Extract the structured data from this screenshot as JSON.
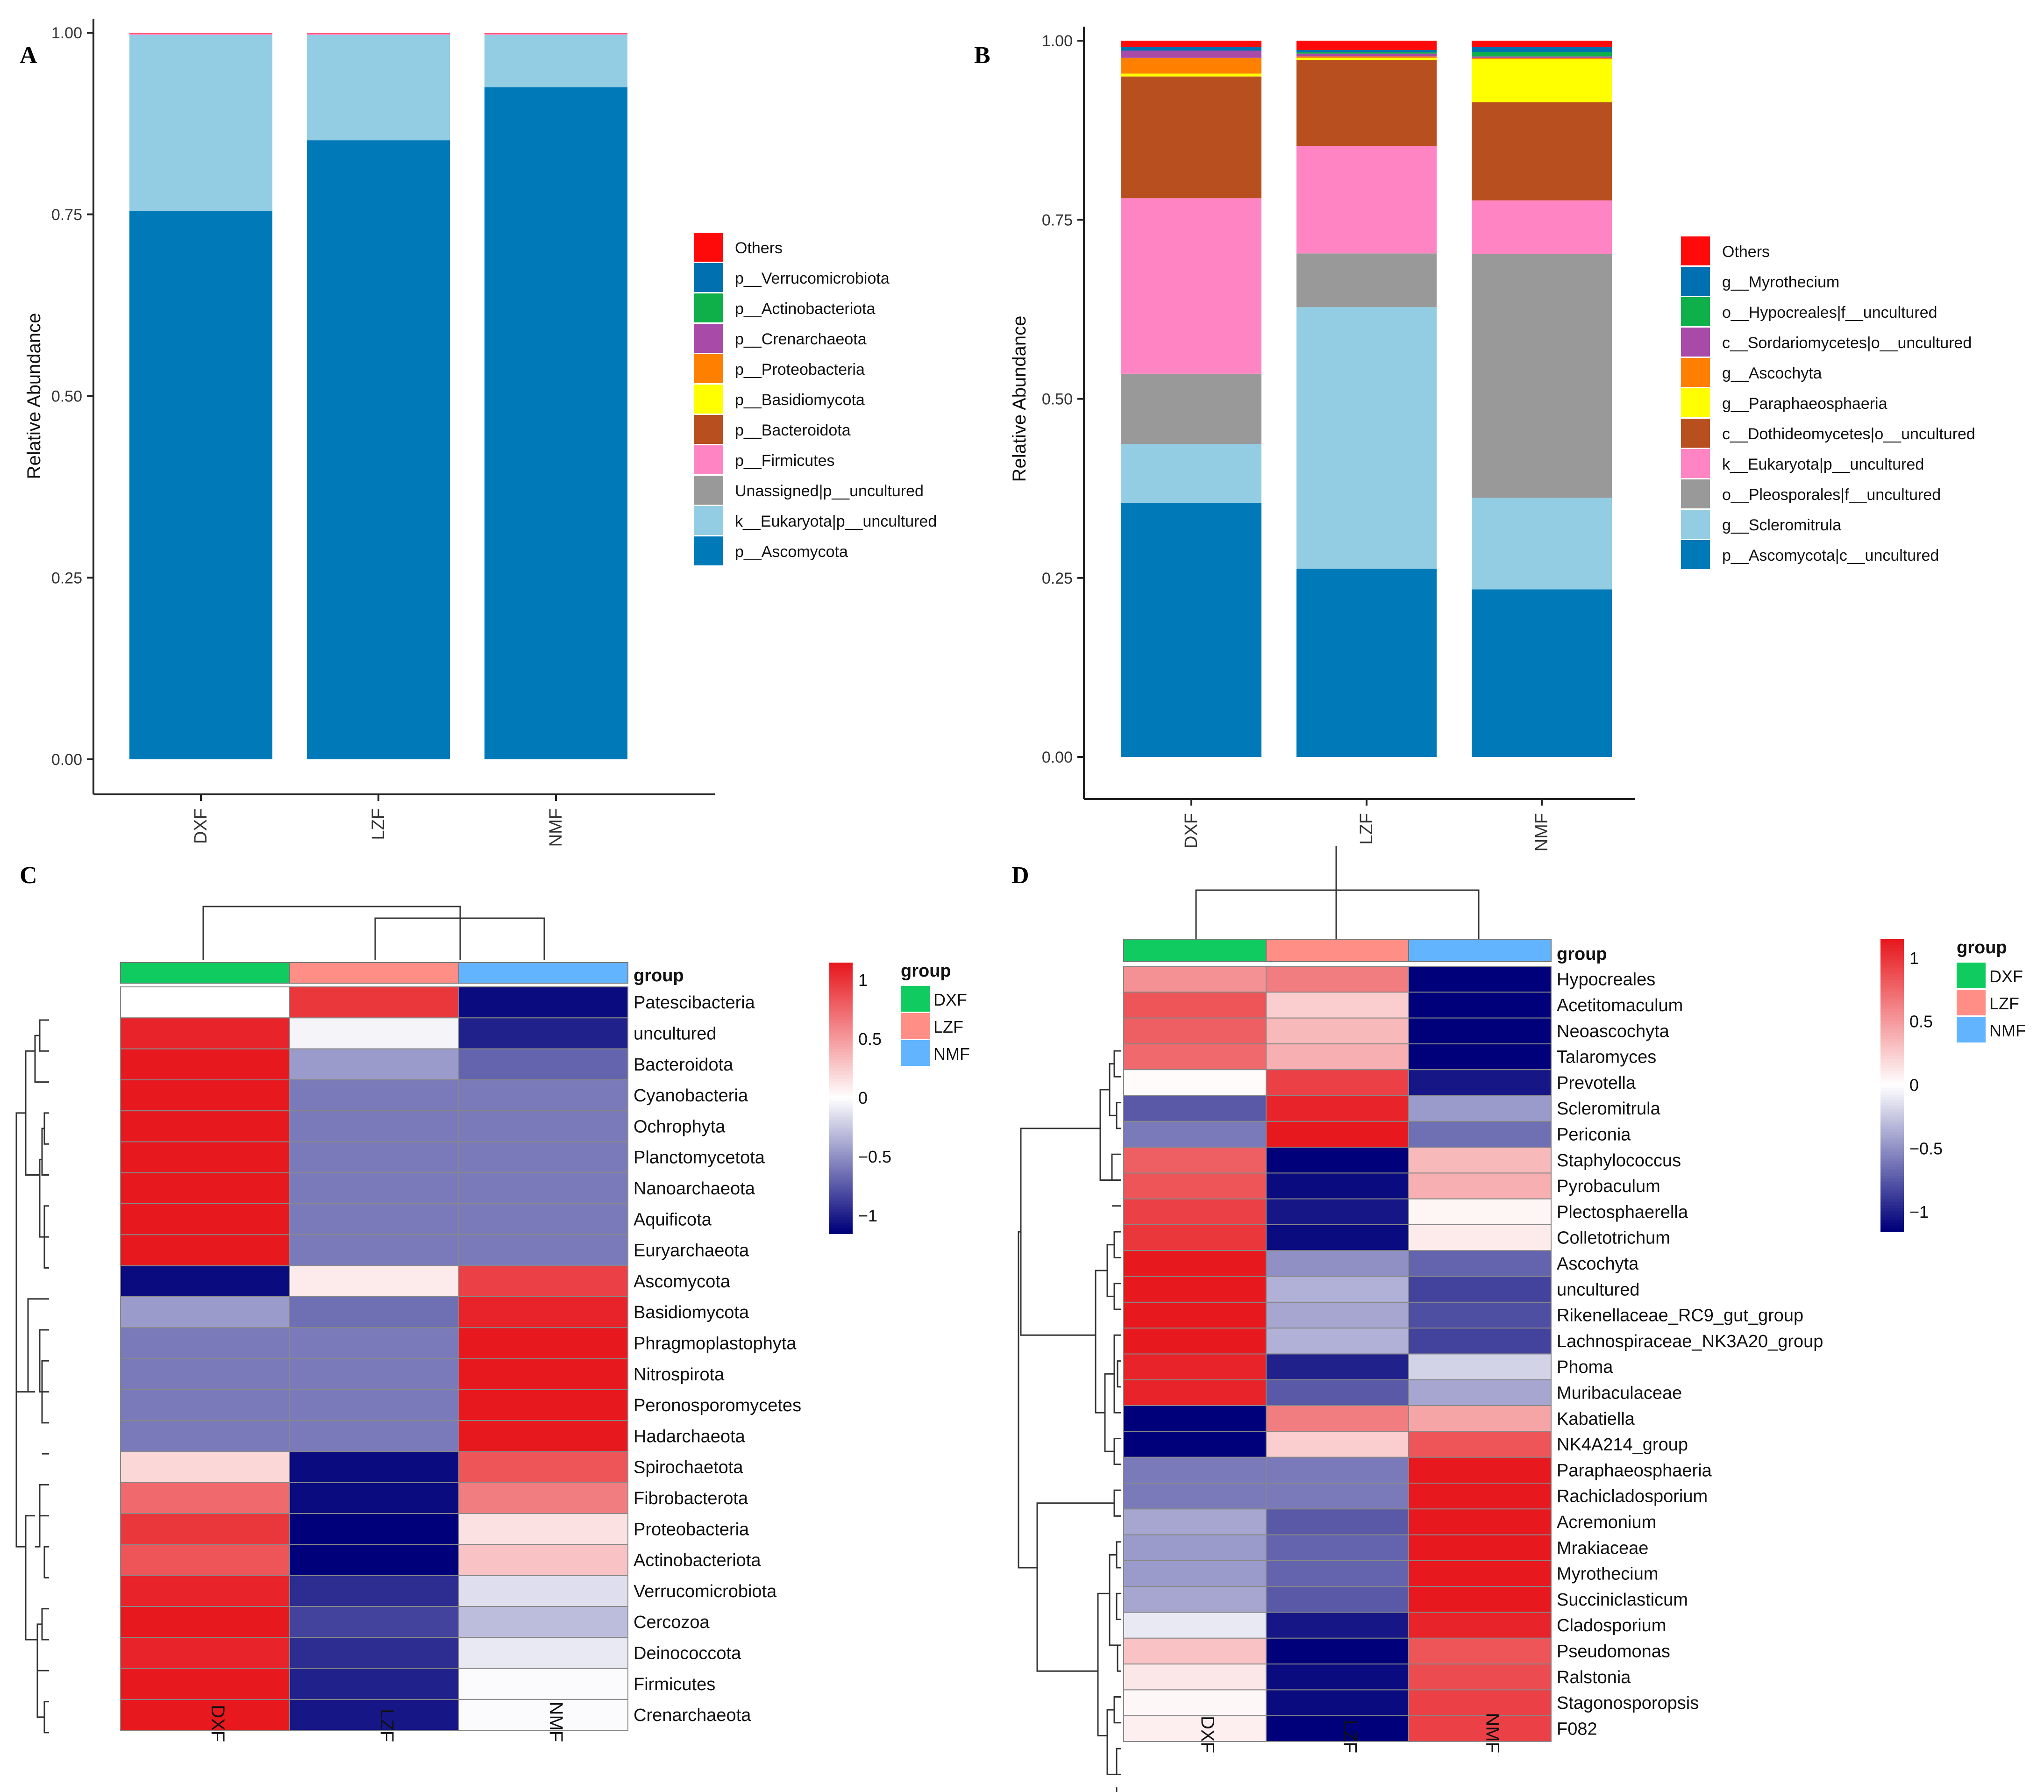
{
  "chart_data": [
    {
      "panel": "A",
      "type": "bar",
      "stacked": true,
      "ylabel": "Relative Abundance",
      "xlabel": "",
      "ylim": [
        0,
        1
      ],
      "yticks": [
        "0.00",
        "0.25",
        "0.50",
        "0.75",
        "1.00"
      ],
      "categories": [
        "DXF",
        "LZF",
        "NMF"
      ],
      "legend": [
        {
          "name": "Others",
          "color": "#ff0a0a"
        },
        {
          "name": "p__Verrucomicrobiota",
          "color": "#0070b0"
        },
        {
          "name": "p__Actinobacteriota",
          "color": "#0fb04a"
        },
        {
          "name": "p__Crenarchaeota",
          "color": "#a84aa8"
        },
        {
          "name": "p__Proteobacteria",
          "color": "#ff8000"
        },
        {
          "name": "p__Basidiomycota",
          "color": "#ffff00"
        },
        {
          "name": "p__Bacteroidota",
          "color": "#b84f1e"
        },
        {
          "name": "p__Firmicutes",
          "color": "#ff84c4"
        },
        {
          "name": "Unassigned|p__uncultured",
          "color": "#999999"
        },
        {
          "name": "k__Eukaryota|p__uncultured",
          "color": "#93cde3"
        },
        {
          "name": "p__Ascomycota",
          "color": "#0079b8"
        }
      ],
      "series": [
        {
          "name": "p__Ascomycota",
          "color": "#0079b8",
          "values": [
            0.755,
            0.852,
            0.925
          ]
        },
        {
          "name": "k__Eukaryota|p__uncultured",
          "color": "#93cde3",
          "values": [
            0.242,
            0.145,
            0.072
          ]
        },
        {
          "name": "Unassigned|p__uncultured",
          "color": "#999999",
          "values": [
            0.0,
            0.0,
            0.0
          ]
        },
        {
          "name": "p__Firmicutes",
          "color": "#ff84c4",
          "values": [
            0.002,
            0.002,
            0.002
          ]
        },
        {
          "name": "Others",
          "color": "#ff0a0a",
          "values": [
            0.001,
            0.001,
            0.001
          ]
        }
      ]
    },
    {
      "panel": "B",
      "type": "bar",
      "stacked": true,
      "ylabel": "Relative Abundance",
      "xlabel": "",
      "ylim": [
        0,
        1
      ],
      "yticks": [
        "0.00",
        "0.25",
        "0.50",
        "0.75",
        "1.00"
      ],
      "categories": [
        "DXF",
        "LZF",
        "NMF"
      ],
      "legend": [
        {
          "name": "Others",
          "color": "#ff0a0a"
        },
        {
          "name": "g__Myrothecium",
          "color": "#0070b0"
        },
        {
          "name": "o__Hypocreales|f__uncultured",
          "color": "#0fb04a"
        },
        {
          "name": "c__Sordariomycetes|o__uncultured",
          "color": "#a84aa8"
        },
        {
          "name": "g__Ascochyta",
          "color": "#ff8000"
        },
        {
          "name": "g__Paraphaeosphaeria",
          "color": "#ffff00"
        },
        {
          "name": "c__Dothideomycetes|o__uncultured",
          "color": "#b84f1e"
        },
        {
          "name": "k__Eukaryota|p__uncultured",
          "color": "#ff84c4"
        },
        {
          "name": "o__Pleosporales|f__uncultured",
          "color": "#999999"
        },
        {
          "name": "g__Scleromitrula",
          "color": "#93cde3"
        },
        {
          "name": "p__Ascomycota|c__uncultured",
          "color": "#0079b8"
        }
      ],
      "series": [
        {
          "name": "p__Ascomycota|c__uncultured",
          "color": "#0079b8",
          "values": [
            0.355,
            0.263,
            0.234
          ]
        },
        {
          "name": "g__Scleromitrula",
          "color": "#93cde3",
          "values": [
            0.082,
            0.365,
            0.128
          ]
        },
        {
          "name": "o__Pleosporales|f__uncultured",
          "color": "#999999",
          "values": [
            0.098,
            0.075,
            0.34
          ]
        },
        {
          "name": "k__Eukaryota|p__uncultured",
          "color": "#ff84c4",
          "values": [
            0.245,
            0.15,
            0.075
          ]
        },
        {
          "name": "c__Dothideomycetes|o__uncultured",
          "color": "#b84f1e",
          "values": [
            0.17,
            0.12,
            0.137
          ]
        },
        {
          "name": "g__Paraphaeosphaeria",
          "color": "#ffff00",
          "values": [
            0.004,
            0.003,
            0.06
          ]
        },
        {
          "name": "g__Ascochyta",
          "color": "#ff8000",
          "values": [
            0.022,
            0.002,
            0.002
          ]
        },
        {
          "name": "c__Sordariomycetes|o__uncultured",
          "color": "#a84aa8",
          "values": [
            0.01,
            0.004,
            0.002
          ]
        },
        {
          "name": "o__Hypocreales|f__uncultured",
          "color": "#0fb04a",
          "values": [
            0.0,
            0.002,
            0.006
          ]
        },
        {
          "name": "g__Myrothecium",
          "color": "#0070b0",
          "values": [
            0.005,
            0.003,
            0.007
          ]
        },
        {
          "name": "Others",
          "color": "#ff0a0a",
          "values": [
            0.009,
            0.013,
            0.009
          ]
        }
      ]
    },
    {
      "panel": "C",
      "type": "heatmap",
      "group_label": "group",
      "columns": [
        "DXF",
        "LZF",
        "NMF"
      ],
      "group_colors": [
        "#10cc60",
        "#ff8e86",
        "#62b4ff"
      ],
      "legend_title": "group",
      "legend_groups": [
        {
          "name": "DXF",
          "color": "#10cc60"
        },
        {
          "name": "LZF",
          "color": "#ff8e86"
        },
        {
          "name": "NMF",
          "color": "#62b4ff"
        }
      ],
      "scale_range": [
        -1.15,
        1.15
      ],
      "scale_ticks": [
        {
          "label": "1",
          "value": 1
        },
        {
          "label": "0.5",
          "value": 0.5
        },
        {
          "label": "0",
          "value": 0
        },
        {
          "label": "−0.5",
          "value": -0.5
        },
        {
          "label": "−1",
          "value": -1
        }
      ],
      "rows": [
        "Patescibacteria",
        "uncultured",
        "Bacteroidota",
        "Cyanobacteria",
        "Ochrophyta",
        "Planctomycetota",
        "Nanoarchaeota",
        "Aquificota",
        "Euryarchaeota",
        "Ascomycota",
        "Basidiomycota",
        "Phragmoplastophyta",
        "Nitrospirota",
        "Peronosporomycetes",
        "Hadarchaeota",
        "Spirochaetota",
        "Fibrobacterota",
        "Proteobacteria",
        "Actinobacteriota",
        "Verrucomicrobiota",
        "Cercozoa",
        "Deinococcota",
        "Firmicutes",
        "Crenarchaeota"
      ],
      "values": [
        [
          0.0,
          1.0,
          -1.1
        ],
        [
          1.1,
          -0.05,
          -1.0
        ],
        [
          1.15,
          -0.45,
          -0.7
        ],
        [
          1.15,
          -0.6,
          -0.6
        ],
        [
          1.15,
          -0.6,
          -0.6
        ],
        [
          1.15,
          -0.6,
          -0.6
        ],
        [
          1.15,
          -0.6,
          -0.6
        ],
        [
          1.15,
          -0.6,
          -0.6
        ],
        [
          1.15,
          -0.6,
          -0.6
        ],
        [
          -1.1,
          0.1,
          0.95
        ],
        [
          -0.45,
          -0.65,
          1.1
        ],
        [
          -0.6,
          -0.6,
          1.15
        ],
        [
          -0.6,
          -0.6,
          1.15
        ],
        [
          -0.6,
          -0.6,
          1.15
        ],
        [
          -0.6,
          -0.6,
          1.15
        ],
        [
          0.2,
          -1.1,
          0.85
        ],
        [
          0.75,
          -1.1,
          0.65
        ],
        [
          1.0,
          -1.15,
          0.15
        ],
        [
          0.85,
          -1.15,
          0.3
        ],
        [
          1.1,
          -0.95,
          -0.15
        ],
        [
          1.15,
          -0.85,
          -0.3
        ],
        [
          1.1,
          -0.95,
          -0.1
        ],
        [
          1.15,
          -1.0,
          -0.02
        ],
        [
          1.15,
          -1.05,
          -0.02
        ]
      ]
    },
    {
      "panel": "D",
      "type": "heatmap",
      "group_label": "group",
      "columns": [
        "DXF",
        "LZF",
        "NMF"
      ],
      "group_colors": [
        "#10cc60",
        "#ff8e86",
        "#62b4ff"
      ],
      "legend_title": "group",
      "legend_groups": [
        {
          "name": "DXF",
          "color": "#10cc60"
        },
        {
          "name": "LZF",
          "color": "#ff8e86"
        },
        {
          "name": "NMF",
          "color": "#62b4ff"
        }
      ],
      "scale_range": [
        -1.15,
        1.15
      ],
      "scale_ticks": [
        {
          "label": "1",
          "value": 1
        },
        {
          "label": "0.5",
          "value": 0.5
        },
        {
          "label": "0",
          "value": 0
        },
        {
          "label": "−0.5",
          "value": -0.5
        },
        {
          "label": "−1",
          "value": -1
        }
      ],
      "rows": [
        "Hypocreales",
        "Acetitomaculum",
        "Neoascochyta",
        "Talaromyces",
        "Prevotella",
        "Scleromitrula",
        "Periconia",
        "Staphylococcus",
        "Pyrobaculum",
        "Plectosphaerella",
        "Colletotrichum",
        "Ascochyta",
        "uncultured",
        "Rikenellaceae_RC9_gut_group",
        "Lachnospiraceae_NK3A20_group",
        "Phoma",
        "Muribaculaceae",
        "Kabatiella",
        "NK4A214_group",
        "Paraphaeosphaeria",
        "Rachicladosporium",
        "Acremonium",
        "Mrakiaceae",
        "Myrothecium",
        "Succiniclasticum",
        "Cladosporium",
        "Pseudomonas",
        "Ralstonia",
        "Stagonosporopsis",
        "F082"
      ],
      "values": [
        [
          0.55,
          0.65,
          -1.15
        ],
        [
          0.85,
          0.25,
          -1.15
        ],
        [
          0.8,
          0.35,
          -1.15
        ],
        [
          0.75,
          0.4,
          -1.15
        ],
        [
          0.02,
          0.95,
          -1.05
        ],
        [
          -0.75,
          1.1,
          -0.45
        ],
        [
          -0.6,
          1.15,
          -0.65
        ],
        [
          0.8,
          -1.15,
          0.35
        ],
        [
          0.85,
          -1.1,
          0.4
        ],
        [
          0.95,
          -1.05,
          0.05
        ],
        [
          1.0,
          -1.1,
          0.1
        ],
        [
          1.15,
          -0.5,
          -0.7
        ],
        [
          1.15,
          -0.35,
          -0.85
        ],
        [
          1.15,
          -0.4,
          -0.8
        ],
        [
          1.15,
          -0.35,
          -0.85
        ],
        [
          1.1,
          -1.0,
          -0.2
        ],
        [
          1.1,
          -0.75,
          -0.4
        ],
        [
          -1.15,
          0.65,
          0.45
        ],
        [
          -1.15,
          0.25,
          0.85
        ],
        [
          -0.6,
          -0.6,
          1.15
        ],
        [
          -0.6,
          -0.6,
          1.15
        ],
        [
          -0.4,
          -0.75,
          1.15
        ],
        [
          -0.45,
          -0.7,
          1.15
        ],
        [
          -0.45,
          -0.7,
          1.15
        ],
        [
          -0.4,
          -0.75,
          1.15
        ],
        [
          -0.1,
          -1.05,
          1.1
        ],
        [
          0.3,
          -1.15,
          0.85
        ],
        [
          0.12,
          -1.1,
          0.9
        ],
        [
          0.04,
          -1.1,
          0.95
        ],
        [
          0.08,
          -1.15,
          0.95
        ]
      ]
    }
  ]
}
